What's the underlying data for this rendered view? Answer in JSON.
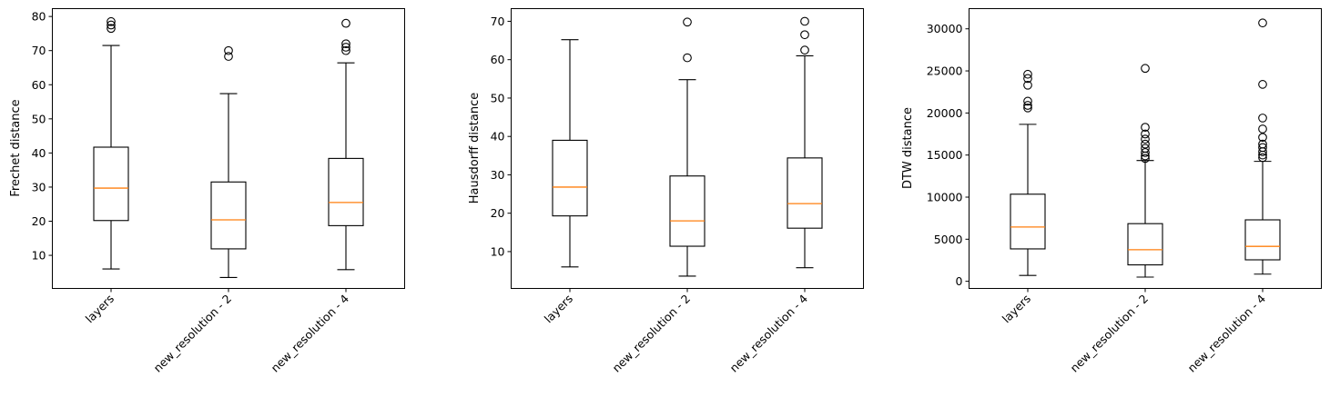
{
  "chart_data": [
    {
      "type": "boxplot",
      "ylabel": "Frechet distance",
      "xlabel": "",
      "categories": [
        "layers",
        "new_resolution - 2",
        "new_resolution - 4"
      ],
      "ylim": [
        0.3,
        82.3
      ],
      "yticks": [
        10,
        20,
        30,
        40,
        50,
        60,
        70,
        80
      ],
      "ytick_labels": [
        "10",
        "20",
        "30",
        "40",
        "50",
        "60",
        "70",
        "80"
      ],
      "boxes": [
        {
          "whislo": 6.0,
          "q1": 20.2,
          "med": 29.7,
          "q3": 41.7,
          "whishi": 71.5,
          "fliers": [
            76.5,
            77.5,
            78.5
          ]
        },
        {
          "whislo": 3.5,
          "q1": 11.9,
          "med": 20.4,
          "q3": 31.5,
          "whishi": 57.4,
          "fliers": [
            68.3,
            70.0
          ]
        },
        {
          "whislo": 5.8,
          "q1": 18.7,
          "med": 25.5,
          "q3": 38.4,
          "whishi": 66.4,
          "fliers": [
            70.0,
            71.0,
            72.0,
            78.0
          ]
        }
      ]
    },
    {
      "type": "boxplot",
      "ylabel": "Hausdorff distance",
      "xlabel": "",
      "categories": [
        "layers",
        "new_resolution - 2",
        "new_resolution - 4"
      ],
      "ylim": [
        0.4,
        73.3
      ],
      "yticks": [
        10,
        20,
        30,
        40,
        50,
        60,
        70
      ],
      "ytick_labels": [
        "10",
        "20",
        "30",
        "40",
        "50",
        "60",
        "70"
      ],
      "boxes": [
        {
          "whislo": 6.0,
          "q1": 19.3,
          "med": 26.8,
          "q3": 39.0,
          "whishi": 65.2,
          "fliers": []
        },
        {
          "whislo": 3.6,
          "q1": 11.4,
          "med": 18.0,
          "q3": 29.7,
          "whishi": 54.8,
          "fliers": [
            60.5,
            69.8
          ]
        },
        {
          "whislo": 5.8,
          "q1": 16.1,
          "med": 22.5,
          "q3": 34.4,
          "whishi": 61.0,
          "fliers": [
            62.5,
            66.5,
            70.0
          ]
        }
      ]
    },
    {
      "type": "boxplot",
      "ylabel": "DTW distance",
      "xlabel": "",
      "categories": [
        "layers",
        "new_resolution - 2",
        "new_resolution - 4"
      ],
      "ylim": [
        -850,
        32400
      ],
      "yticks": [
        0,
        5000,
        10000,
        15000,
        20000,
        25000,
        30000
      ],
      "ytick_labels": [
        "0",
        "5000",
        "10000",
        "15000",
        "20000",
        "25000",
        "30000"
      ],
      "boxes": [
        {
          "whislo": 700,
          "q1": 3850,
          "med": 6450,
          "q3": 10350,
          "whishi": 18650,
          "fliers": [
            20600,
            20900,
            21400,
            23300,
            24100,
            24600
          ]
        },
        {
          "whislo": 500,
          "q1": 1950,
          "med": 3750,
          "q3": 6850,
          "whishi": 14350,
          "fliers": [
            14600,
            14900,
            15300,
            15800,
            16300,
            16900,
            17500,
            18300,
            25300
          ]
        },
        {
          "whislo": 850,
          "q1": 2550,
          "med": 4150,
          "q3": 7300,
          "whishi": 14250,
          "fliers": [
            14700,
            15000,
            15400,
            15900,
            16300,
            17100,
            18100,
            19400,
            23400,
            30700
          ]
        }
      ]
    }
  ]
}
